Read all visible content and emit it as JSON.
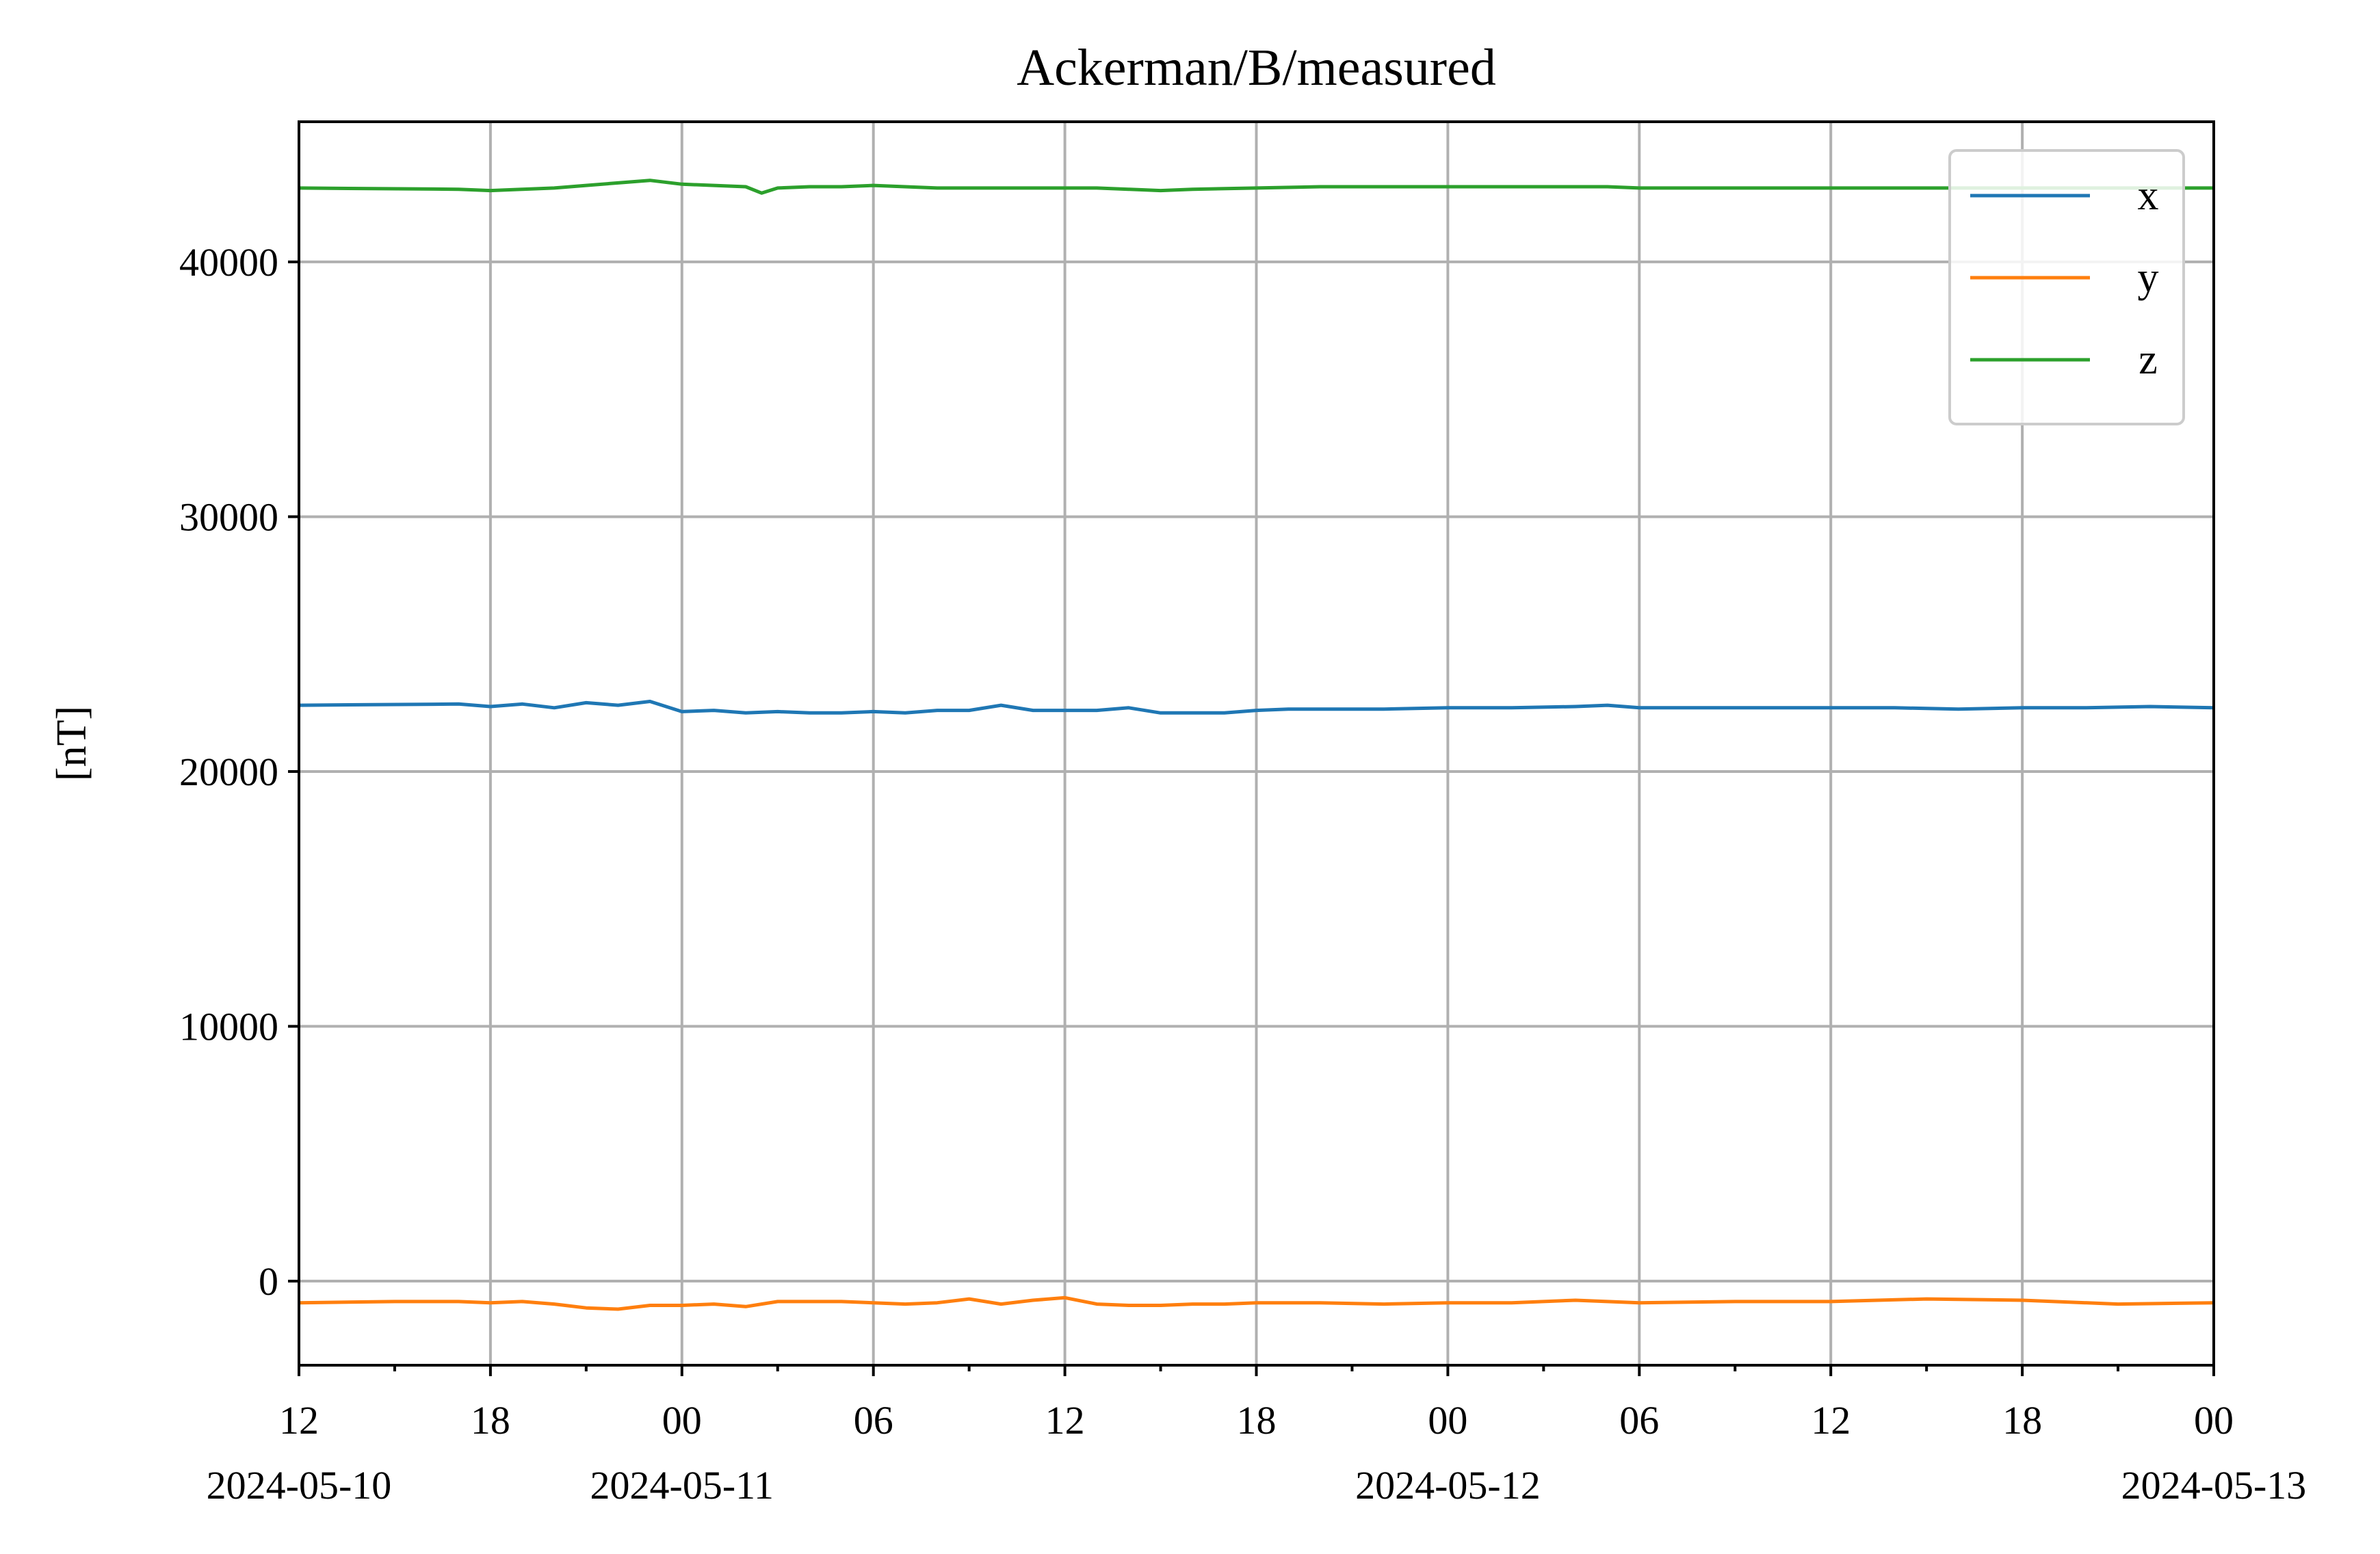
{
  "chart_data": {
    "type": "line",
    "title": "Ackerman/B/measured",
    "xlabel": "",
    "ylabel": "[nT]",
    "xlim": [
      "2024-05-10T12:00",
      "2024-05-13T00:00"
    ],
    "ylim": [
      -3300,
      45500
    ],
    "grid": true,
    "legend_position": "top-right",
    "x_ticks": [
      {
        "at": "2024-05-10T12:00",
        "label": "12",
        "date_label": "2024-05-10"
      },
      {
        "at": "2024-05-10T18:00",
        "label": "18",
        "date_label": ""
      },
      {
        "at": "2024-05-11T00:00",
        "label": "00",
        "date_label": "2024-05-11"
      },
      {
        "at": "2024-05-11T06:00",
        "label": "06",
        "date_label": ""
      },
      {
        "at": "2024-05-11T12:00",
        "label": "12",
        "date_label": ""
      },
      {
        "at": "2024-05-11T18:00",
        "label": "18",
        "date_label": ""
      },
      {
        "at": "2024-05-12T00:00",
        "label": "00",
        "date_label": "2024-05-12"
      },
      {
        "at": "2024-05-12T06:00",
        "label": "06",
        "date_label": ""
      },
      {
        "at": "2024-05-12T12:00",
        "label": "12",
        "date_label": ""
      },
      {
        "at": "2024-05-12T18:00",
        "label": "18",
        "date_label": ""
      },
      {
        "at": "2024-05-13T00:00",
        "label": "00",
        "date_label": "2024-05-13"
      }
    ],
    "x_minor_ticks": [
      "2024-05-10T15:00",
      "2024-05-10T21:00",
      "2024-05-11T03:00",
      "2024-05-11T09:00",
      "2024-05-11T15:00",
      "2024-05-11T21:00",
      "2024-05-12T03:00",
      "2024-05-12T09:00",
      "2024-05-12T15:00",
      "2024-05-12T21:00"
    ],
    "y_ticks": [
      0,
      10000,
      20000,
      30000,
      40000
    ],
    "y_tick_labels": [
      "0",
      "10000",
      "20000",
      "30000",
      "40000"
    ],
    "series": [
      {
        "name": "x",
        "color": "#1f77b4",
        "x": [
          "2024-05-10T12:00",
          "2024-05-10T17:00",
          "2024-05-10T18:00",
          "2024-05-10T19:00",
          "2024-05-10T20:00",
          "2024-05-10T21:00",
          "2024-05-10T22:00",
          "2024-05-10T23:00",
          "2024-05-11T00:00",
          "2024-05-11T01:00",
          "2024-05-11T02:00",
          "2024-05-11T03:00",
          "2024-05-11T04:00",
          "2024-05-11T05:00",
          "2024-05-11T06:00",
          "2024-05-11T07:00",
          "2024-05-11T08:00",
          "2024-05-11T09:00",
          "2024-05-11T10:00",
          "2024-05-11T11:00",
          "2024-05-11T12:00",
          "2024-05-11T13:00",
          "2024-05-11T14:00",
          "2024-05-11T15:00",
          "2024-05-11T16:00",
          "2024-05-11T17:00",
          "2024-05-11T18:00",
          "2024-05-11T19:00",
          "2024-05-11T20:00",
          "2024-05-11T22:00",
          "2024-05-12T00:00",
          "2024-05-12T02:00",
          "2024-05-12T04:00",
          "2024-05-12T05:00",
          "2024-05-12T06:00",
          "2024-05-12T08:00",
          "2024-05-12T10:00",
          "2024-05-12T12:00",
          "2024-05-12T14:00",
          "2024-05-12T16:00",
          "2024-05-12T18:00",
          "2024-05-12T20:00",
          "2024-05-12T22:00",
          "2024-05-13T00:00"
        ],
        "values": [
          22600,
          22650,
          22550,
          22650,
          22500,
          22700,
          22600,
          22750,
          22350,
          22400,
          22300,
          22350,
          22300,
          22300,
          22350,
          22300,
          22400,
          22400,
          22600,
          22400,
          22400,
          22400,
          22500,
          22300,
          22300,
          22300,
          22400,
          22450,
          22450,
          22450,
          22500,
          22500,
          22550,
          22600,
          22500,
          22500,
          22500,
          22500,
          22500,
          22450,
          22500,
          22500,
          22550,
          22500
        ]
      },
      {
        "name": "y",
        "color": "#ff7f0e",
        "x": [
          "2024-05-10T12:00",
          "2024-05-10T15:00",
          "2024-05-10T17:00",
          "2024-05-10T18:00",
          "2024-05-10T19:00",
          "2024-05-10T20:00",
          "2024-05-10T21:00",
          "2024-05-10T22:00",
          "2024-05-10T23:00",
          "2024-05-11T00:00",
          "2024-05-11T01:00",
          "2024-05-11T02:00",
          "2024-05-11T03:00",
          "2024-05-11T04:00",
          "2024-05-11T05:00",
          "2024-05-11T06:00",
          "2024-05-11T07:00",
          "2024-05-11T08:00",
          "2024-05-11T09:00",
          "2024-05-11T10:00",
          "2024-05-11T11:00",
          "2024-05-11T12:00",
          "2024-05-11T13:00",
          "2024-05-11T14:00",
          "2024-05-11T15:00",
          "2024-05-11T16:00",
          "2024-05-11T17:00",
          "2024-05-11T18:00",
          "2024-05-11T20:00",
          "2024-05-11T22:00",
          "2024-05-12T00:00",
          "2024-05-12T02:00",
          "2024-05-12T04:00",
          "2024-05-12T05:00",
          "2024-05-12T06:00",
          "2024-05-12T09:00",
          "2024-05-12T12:00",
          "2024-05-12T15:00",
          "2024-05-12T18:00",
          "2024-05-12T21:00",
          "2024-05-13T00:00"
        ],
        "values": [
          -850,
          -800,
          -800,
          -850,
          -800,
          -900,
          -1050,
          -1100,
          -950,
          -950,
          -900,
          -1000,
          -800,
          -800,
          -800,
          -850,
          -900,
          -850,
          -700,
          -900,
          -750,
          -650,
          -900,
          -950,
          -950,
          -900,
          -900,
          -850,
          -850,
          -900,
          -850,
          -850,
          -750,
          -800,
          -850,
          -800,
          -800,
          -700,
          -750,
          -900,
          -850
        ]
      },
      {
        "name": "z",
        "color": "#2ca02c",
        "x": [
          "2024-05-10T12:00",
          "2024-05-10T17:00",
          "2024-05-10T18:00",
          "2024-05-10T19:00",
          "2024-05-10T20:00",
          "2024-05-10T21:00",
          "2024-05-10T22:00",
          "2024-05-10T23:00",
          "2024-05-11T00:00",
          "2024-05-11T01:00",
          "2024-05-11T02:00",
          "2024-05-11T02:30",
          "2024-05-11T03:00",
          "2024-05-11T04:00",
          "2024-05-11T05:00",
          "2024-05-11T06:00",
          "2024-05-11T07:00",
          "2024-05-11T08:00",
          "2024-05-11T09:00",
          "2024-05-11T10:00",
          "2024-05-11T11:00",
          "2024-05-11T12:00",
          "2024-05-11T13:00",
          "2024-05-11T14:00",
          "2024-05-11T15:00",
          "2024-05-11T16:00",
          "2024-05-11T18:00",
          "2024-05-11T20:00",
          "2024-05-11T22:00",
          "2024-05-12T00:00",
          "2024-05-12T02:00",
          "2024-05-12T04:00",
          "2024-05-12T05:00",
          "2024-05-12T06:00",
          "2024-05-12T09:00",
          "2024-05-12T12:00",
          "2024-05-12T15:00",
          "2024-05-12T18:00",
          "2024-05-12T21:00",
          "2024-05-13T00:00"
        ],
        "values": [
          42900,
          42850,
          42800,
          42850,
          42900,
          43000,
          43100,
          43200,
          43050,
          43000,
          42950,
          42700,
          42900,
          42950,
          42950,
          43000,
          42950,
          42900,
          42900,
          42900,
          42900,
          42900,
          42900,
          42850,
          42800,
          42850,
          42900,
          42950,
          42950,
          42950,
          42950,
          42950,
          42950,
          42900,
          42900,
          42900,
          42900,
          42900,
          42900,
          42900
        ]
      }
    ]
  }
}
